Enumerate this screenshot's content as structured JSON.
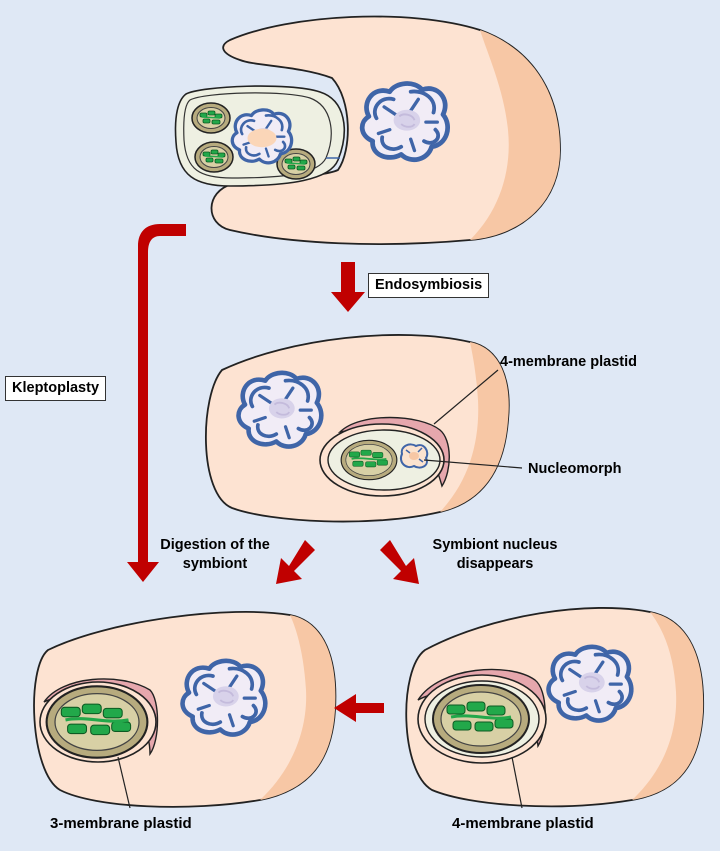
{
  "labels": {
    "endosymbiosis": "Endosymbiosis",
    "kleptoplasty": "Kleptoplasty",
    "four_membrane_plastid_top": "4-membrane plastid",
    "nucleomorph": "Nucleomorph",
    "digestion_of_the_symbiont": "Digestion of the symbiont",
    "symbiont_nucleus_disappears": "Symbiont nucleus disappears",
    "three_membrane_plastid": "3-membrane plastid",
    "four_membrane_plastid_bottom": "4-membrane plastid"
  },
  "colors": {
    "background": "#dfe8f5",
    "cell_light": "#fde3d2",
    "cell_dark": "#f7c7a5",
    "symbiont": "#eef0e2",
    "nucleus_blue": "#3f65a8",
    "nucleolus": "#d8d2ea",
    "chloroplast_fill": "#b7ab7e",
    "chloroplast_inner": "#d8d0a5",
    "thylakoid": "#22a84a",
    "pink_membrane": "#e6a7ad",
    "arrow_red": "#c00000"
  },
  "icons": [
    "host-cell",
    "nucleus-icon",
    "chloroplast-icon",
    "nucleomorph-icon",
    "arrow-icon"
  ]
}
